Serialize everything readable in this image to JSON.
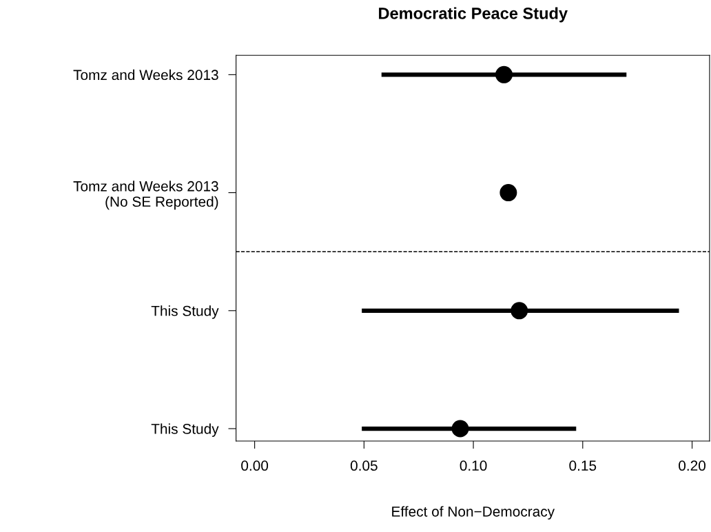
{
  "chart_data": {
    "type": "scatter",
    "orientation": "horizontal",
    "title": "Democratic Peace Study",
    "xlabel": "Effect of Non−Democracy",
    "categories": [
      "Tomz and Weeks 2013",
      "Tomz and Weeks 2013\n(No SE Reported)",
      "This Study",
      "This Study"
    ],
    "color": "#000000",
    "values": [
      0.114,
      0.116,
      0.121,
      0.094
    ],
    "errors": [
      [
        0.058,
        0.17
      ],
      null,
      [
        0.049,
        0.194
      ],
      [
        0.049,
        0.147
      ]
    ],
    "xlim": [
      -0.0085,
      0.208
    ],
    "xticks": [
      {
        "value": 0,
        "label": "0.00"
      },
      {
        "value": 0.05,
        "label": "0.05"
      },
      {
        "value": 0.1,
        "label": "0.10"
      },
      {
        "value": 0.15,
        "label": "0.15"
      },
      {
        "value": 0.2,
        "label": "0.20"
      }
    ],
    "marker": "circle",
    "grid": false,
    "legend": false
  }
}
